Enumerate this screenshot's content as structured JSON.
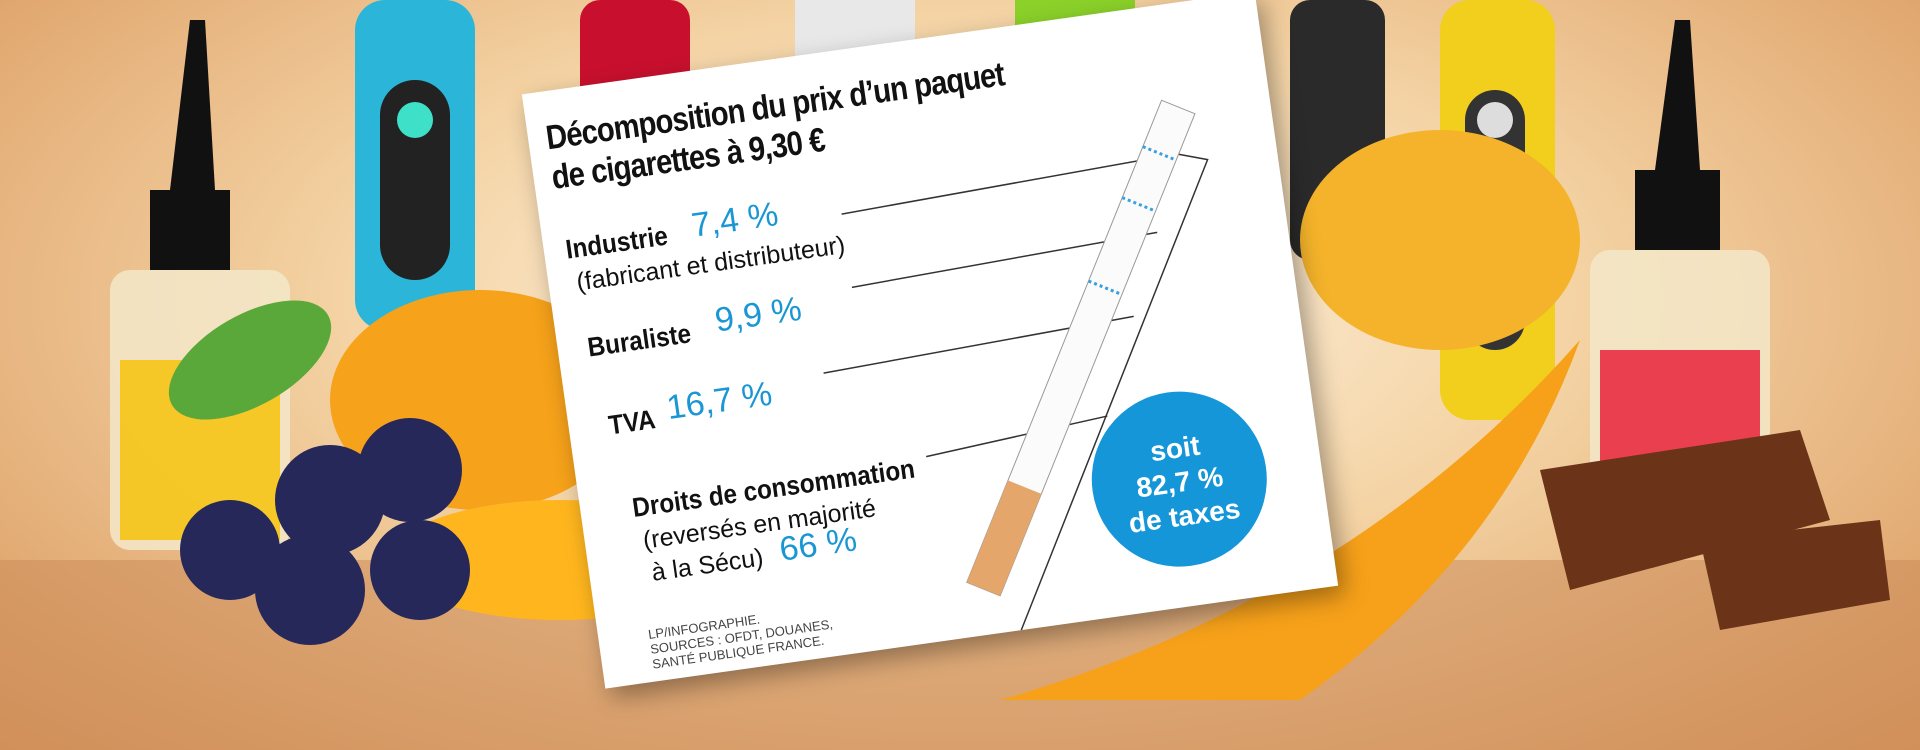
{
  "title": [
    "Décomposition du prix d’un paquet",
    "de cigarettes à 9,30 €"
  ],
  "items": [
    {
      "label": "Industrie",
      "value": "7,4 %",
      "note": [
        "(fabricant et distributeur)"
      ]
    },
    {
      "label": "Buraliste",
      "value": "9,9 %"
    },
    {
      "label": "TVA",
      "value": "16,7 %"
    },
    {
      "label": "Droits de consommation",
      "value": "66 %",
      "note": [
        "(reversés en majorité",
        "à la Sécu)"
      ]
    }
  ],
  "badge": [
    "soit",
    "82,7 %",
    "de taxes"
  ],
  "source": [
    "LP/INFOGRAPHIE.",
    "SOURCES : OFDT, DOUANES,",
    "SANTÉ PUBLIQUE FRANCE."
  ]
}
